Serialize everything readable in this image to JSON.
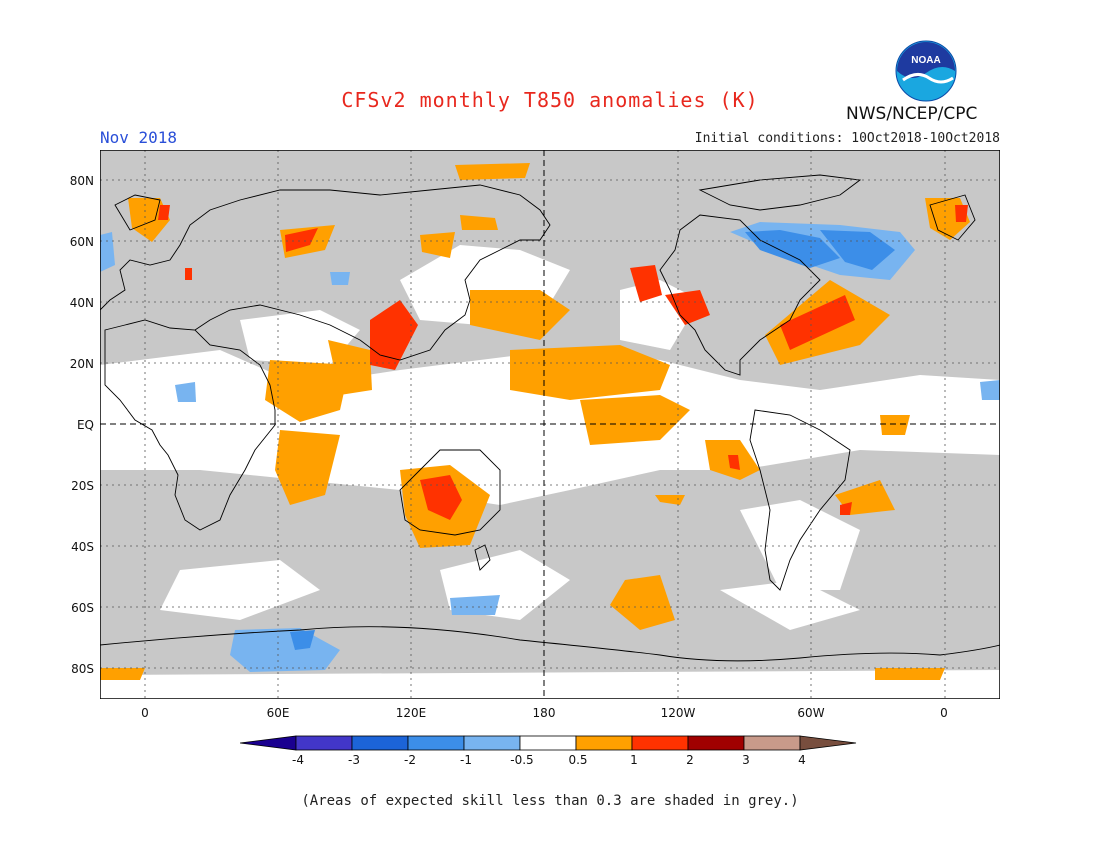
{
  "header": {
    "title": "CFSv2 monthly T850 anomalies (K)",
    "month": "Nov 2018",
    "agency": "NWS/NCEP/CPC",
    "initial_conditions": "Initial conditions: 10Oct2018-10Oct2018"
  },
  "logo": {
    "icon": "noaa-logo",
    "text": "NOAA"
  },
  "map": {
    "background_color": "#c8c8c8",
    "lat_labels": [
      "80N",
      "60N",
      "40N",
      "20N",
      "EQ",
      "20S",
      "40S",
      "60S",
      "80S"
    ],
    "lon_labels": [
      "0",
      "60E",
      "120E",
      "180",
      "120W",
      "60W",
      "0"
    ]
  },
  "colorbar": {
    "labels": [
      "-4",
      "-3",
      "-2",
      "-1",
      "-0.5",
      "0.5",
      "1",
      "2",
      "3",
      "4"
    ],
    "colors": [
      "#1a0090",
      "#4236c8",
      "#1c64d8",
      "#3c8ee8",
      "#78b4f0",
      "#ffffff",
      "#ffa000",
      "#ff3200",
      "#a00000",
      "#c89a8a",
      "#784e3e"
    ]
  },
  "footnote": "(Areas of expected skill less than 0.3 are shaded in grey.)"
}
